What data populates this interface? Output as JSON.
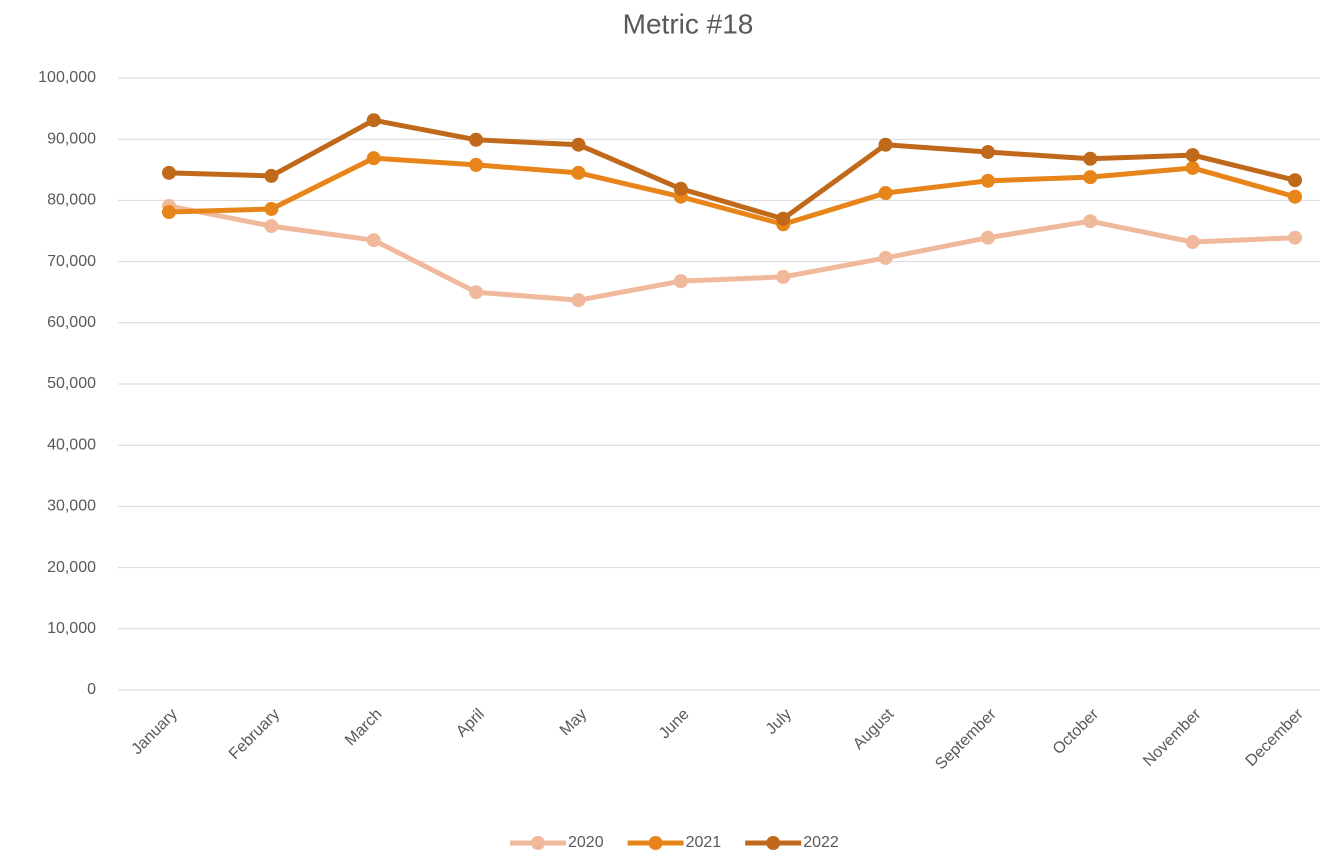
{
  "chart_data": {
    "type": "line",
    "title": "Metric #18",
    "categories": [
      "January",
      "February",
      "March",
      "April",
      "May",
      "June",
      "July",
      "August",
      "September",
      "October",
      "November",
      "December"
    ],
    "series": [
      {
        "name": "2020",
        "color": "#f1b99c",
        "values": [
          79100,
          75800,
          73500,
          65000,
          63700,
          66800,
          67500,
          70600,
          73900,
          76600,
          73200,
          73900
        ]
      },
      {
        "name": "2021",
        "color": "#e8851a",
        "values": [
          78100,
          78600,
          86900,
          85800,
          84500,
          80600,
          76100,
          81200,
          83200,
          83800,
          85300,
          80600
        ]
      },
      {
        "name": "2022",
        "color": "#c0691a",
        "values": [
          84500,
          84000,
          93100,
          89900,
          89100,
          81900,
          77000,
          89100,
          87900,
          86800,
          87400,
          83300
        ]
      }
    ],
    "ylim": [
      0,
      100000
    ],
    "yticks": [
      0,
      {
        "value": 10000,
        "label": "10,000"
      },
      {
        "value": 20000,
        "label": "20,000"
      },
      {
        "value": 30000,
        "label": "30,000"
      },
      {
        "value": 40000,
        "label": "40,000"
      },
      {
        "value": 50000,
        "label": "50,000"
      },
      {
        "value": 60000,
        "label": "60,000"
      },
      {
        "value": 70000,
        "label": "70,000"
      },
      {
        "value": 80000,
        "label": "80,000"
      },
      {
        "value": 90000,
        "label": "90,000"
      },
      {
        "value": 100000,
        "label": "100,000"
      }
    ],
    "grid": true,
    "legend": "bottom"
  }
}
